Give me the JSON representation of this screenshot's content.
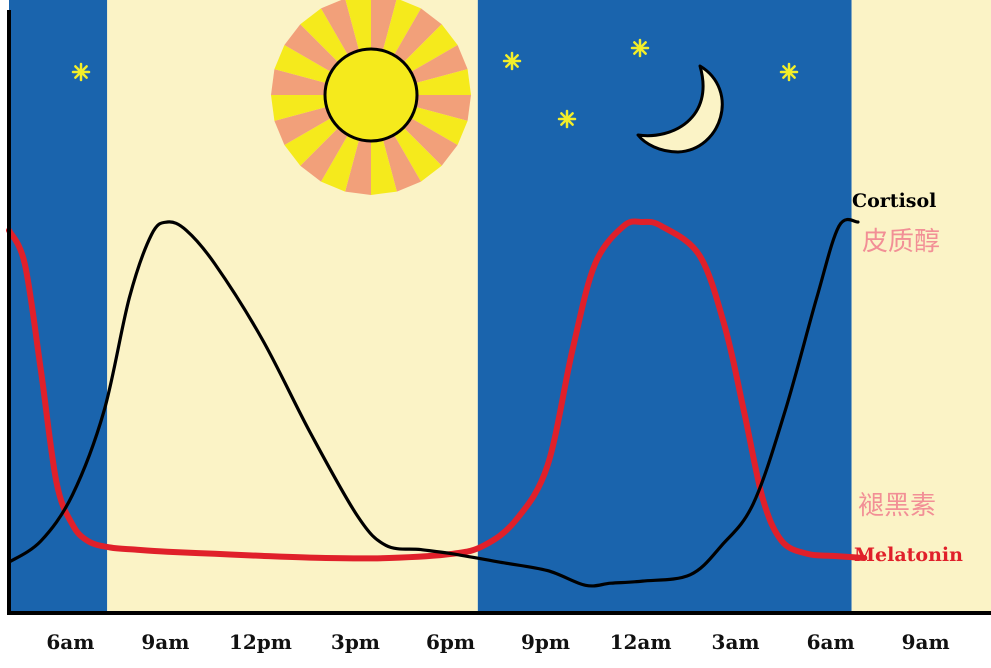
{
  "chart_data": {
    "type": "line",
    "title": "",
    "xlabel": "",
    "ylabel": "",
    "x_tick_labels": [
      "6am",
      "9am",
      "12pm",
      "3pm",
      "6pm",
      "9pm",
      "12am",
      "3am",
      "6am",
      "9am"
    ],
    "series": [
      {
        "name": "Cortisol",
        "name_cn": "皮质醇",
        "color": "#000000",
        "x_hours": [
          4.0,
          5.0,
          6.0,
          7.0,
          7.8,
          8.5,
          9.0,
          9.6,
          10.5,
          12.0,
          13.5,
          15.0,
          15.9,
          17.0,
          18.0,
          19.5,
          21.0,
          22.2,
          23.0,
          24.0,
          25.5,
          26.5,
          27.5,
          28.5,
          29.5,
          30.2,
          30.8
        ],
        "values": [
          9,
          14,
          25,
          45,
          72,
          87,
          90,
          88,
          80,
          62,
          40,
          20,
          13,
          12,
          11,
          9,
          7,
          3.5,
          4,
          4.5,
          6,
          13,
          23,
          45,
          72,
          89,
          90
        ]
      },
      {
        "name": "Melatonin",
        "name_cn": "褪黑素",
        "color": "#e0202a",
        "x_hours": [
          4.0,
          4.5,
          5.0,
          5.5,
          6.0,
          6.5,
          7.2,
          8.0,
          9.0,
          10.5,
          12.0,
          14.0,
          16.0,
          18.0,
          19.0,
          20.0,
          21.0,
          21.8,
          22.5,
          23.4,
          24.0,
          24.6,
          25.8,
          26.6,
          27.2,
          27.8,
          28.4,
          29.2,
          30.0,
          31.0
        ],
        "values": [
          88,
          80,
          55,
          28,
          18,
          14,
          12.5,
          12,
          11.5,
          11,
          10.5,
          10,
          10,
          11,
          13,
          19,
          32,
          60,
          80,
          89,
          90,
          89,
          82,
          65,
          45,
          24,
          14,
          11,
          10.5,
          10
        ]
      }
    ],
    "background_bands": [
      {
        "label": "night",
        "color": "#1a64ad",
        "from_hour": 4.0,
        "to_hour": 7.1
      },
      {
        "label": "day",
        "color": "#fbf3c6",
        "from_hour": 7.1,
        "to_hour": 18.8
      },
      {
        "label": "night",
        "color": "#1a64ad",
        "from_hour": 18.8,
        "to_hour": 30.6
      },
      {
        "label": "day",
        "color": "#fbf3c6",
        "from_hour": 30.6,
        "to_hour": 35.0
      }
    ],
    "xlim_hours": [
      4.0,
      35.0
    ],
    "ylim": [
      0,
      100
    ],
    "grid": false,
    "legend": "inline-right",
    "colors": {
      "night": "#1a64ad",
      "day": "#fbf3c6",
      "sun": "#f5ea1c",
      "sun_rays": "#f2a07a",
      "moon": "#fbf3c6",
      "stars": "#f2ee2a",
      "cortisol": "#000000",
      "melatonin": "#e0202a",
      "melatonin_cn": "#f28f96"
    },
    "decorations": [
      "sun-icon",
      "crescent-moon-icon",
      "star-icon"
    ]
  }
}
